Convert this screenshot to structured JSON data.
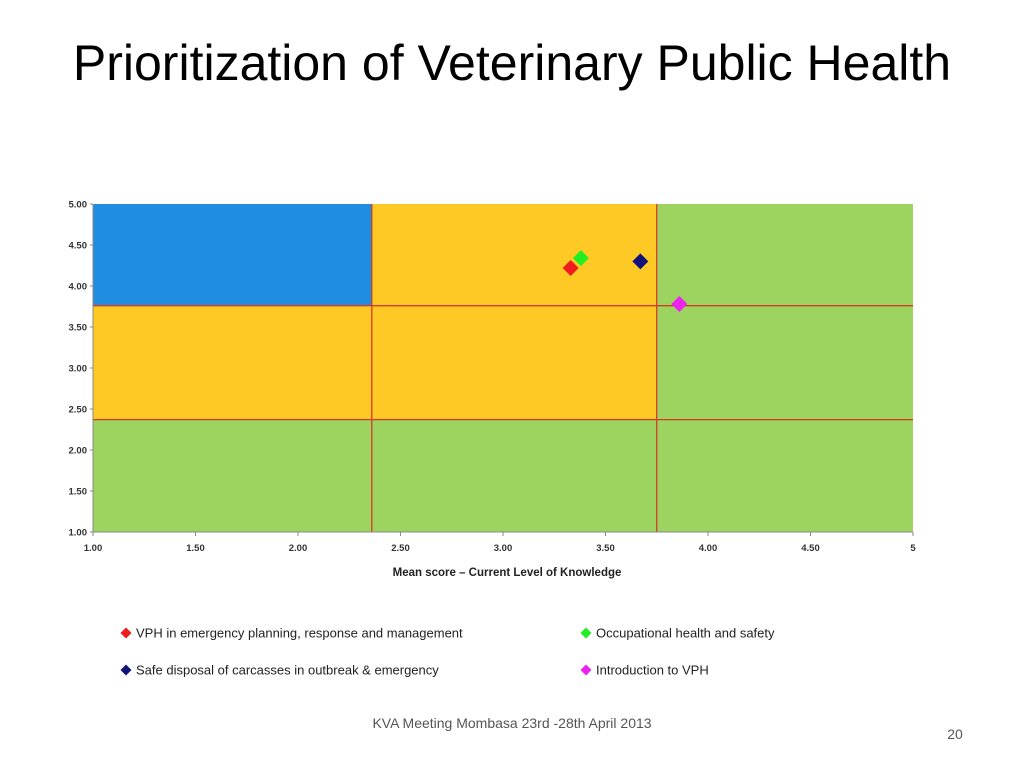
{
  "slide": {
    "title": "Prioritization of Veterinary Public Health",
    "footer": "KVA Meeting Mombasa 23rd -28th April 2013",
    "page_number": "20"
  },
  "chart_data": {
    "type": "scatter",
    "title": "",
    "xlabel": "Mean score – Current Level of Knowledge",
    "ylabel": "",
    "xlim": [
      1.0,
      5.0
    ],
    "ylim": [
      1.0,
      5.0
    ],
    "x_ticks": [
      "1.00",
      "1.50",
      "2.00",
      "2.50",
      "3.00",
      "3.50",
      "4.00",
      "4.50",
      "5"
    ],
    "y_ticks": [
      "1.00",
      "1.50",
      "2.00",
      "2.50",
      "3.00",
      "3.50",
      "4.00",
      "4.50",
      "5.00"
    ],
    "thresholds": {
      "x": [
        2.36,
        3.75
      ],
      "y": [
        2.37,
        3.76
      ]
    },
    "zone_colors": {
      "blue": "#1f8ee0",
      "orange": "#ffc925",
      "green": "#9dd35f"
    },
    "threshold_line_color": "#d43a2a",
    "series": [
      {
        "name": "VPH in emergency planning, response and management",
        "x": 3.33,
        "y": 4.22,
        "color": "#ee1c1c"
      },
      {
        "name": "Occupational health and safety",
        "x": 3.38,
        "y": 4.34,
        "color": "#22ee22"
      },
      {
        "name": "Safe disposal of carcasses in outbreak & emergency",
        "x": 3.67,
        "y": 4.3,
        "color": "#12127a"
      },
      {
        "name": "Introduction to VPH",
        "x": 3.86,
        "y": 3.78,
        "color": "#ee22ee"
      }
    ],
    "legend_position": "bottom"
  }
}
